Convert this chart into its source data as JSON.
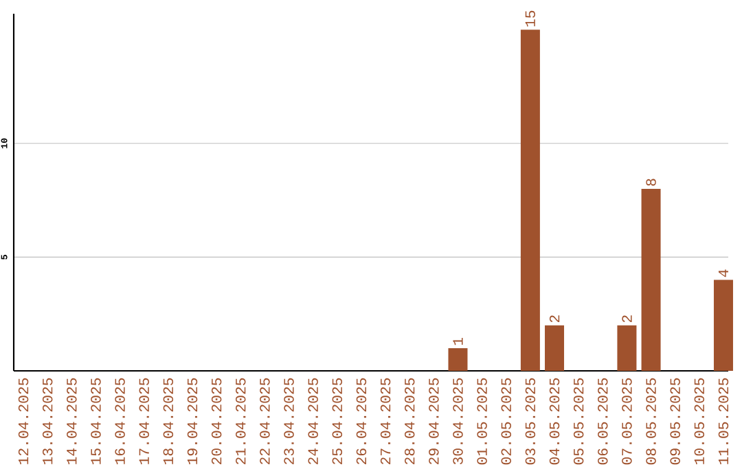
{
  "chart_data": {
    "type": "bar",
    "categories": [
      "12.04.2025",
      "13.04.2025",
      "14.04.2025",
      "15.04.2025",
      "16.04.2025",
      "17.04.2025",
      "18.04.2025",
      "19.04.2025",
      "20.04.2025",
      "21.04.2025",
      "22.04.2025",
      "23.04.2025",
      "24.04.2025",
      "25.04.2025",
      "26.04.2025",
      "27.04.2025",
      "28.04.2025",
      "29.04.2025",
      "30.04.2025",
      "01.05.2025",
      "02.05.2025",
      "03.05.2025",
      "04.05.2025",
      "05.05.2025",
      "06.05.2025",
      "07.05.2025",
      "08.05.2025",
      "09.05.2025",
      "10.05.2025",
      "11.05.2025"
    ],
    "values": [
      0,
      0,
      0,
      0,
      0,
      0,
      0,
      0,
      0,
      0,
      0,
      0,
      0,
      0,
      0,
      0,
      0,
      0,
      1,
      0,
      0,
      15,
      2,
      0,
      0,
      2,
      8,
      0,
      0,
      4
    ],
    "value_labels": [
      null,
      null,
      null,
      null,
      null,
      null,
      null,
      null,
      null,
      null,
      null,
      null,
      null,
      null,
      null,
      null,
      null,
      null,
      "1",
      null,
      null,
      "15",
      "2",
      null,
      null,
      "2",
      "8",
      null,
      null,
      "4"
    ],
    "color": "#a0522d",
    "ylim": [
      0,
      15.7
    ],
    "yticks": [
      5,
      10
    ],
    "grid": "y"
  }
}
